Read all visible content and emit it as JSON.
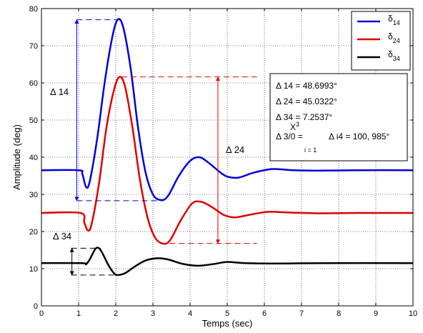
{
  "chart_data": {
    "type": "line",
    "xlabel": "Temps (sec)",
    "ylabel": "Amplitude (deg)",
    "xlim": [
      0,
      10
    ],
    "ylim": [
      0,
      80
    ],
    "xticks": [
      "0",
      "1",
      "2",
      "3",
      "4",
      "5",
      "6",
      "7",
      "8",
      "9",
      "10"
    ],
    "yticks": [
      "0",
      "10",
      "20",
      "30",
      "40",
      "50",
      "60",
      "70",
      "80"
    ],
    "grid": true,
    "legend_position": "top-right",
    "legend": [
      {
        "symbol": "δ",
        "sub": "14",
        "color": "#0000dd"
      },
      {
        "symbol": "δ",
        "sub": "24",
        "color": "#dd0000"
      },
      {
        "symbol": "δ",
        "sub": "34",
        "color": "#000000"
      }
    ],
    "series": [
      {
        "name": "δ14",
        "color": "#0000dd",
        "points": [
          [
            0,
            36.5
          ],
          [
            1.0,
            36.5
          ],
          [
            1.1,
            35.5
          ],
          [
            1.2,
            32.0
          ],
          [
            1.3,
            33.5
          ],
          [
            1.5,
            45
          ],
          [
            1.7,
            60
          ],
          [
            1.9,
            72
          ],
          [
            2.05,
            77
          ],
          [
            2.2,
            75
          ],
          [
            2.4,
            64
          ],
          [
            2.6,
            48
          ],
          [
            2.8,
            36
          ],
          [
            3.0,
            30
          ],
          [
            3.2,
            28.5
          ],
          [
            3.4,
            29.5
          ],
          [
            3.7,
            35
          ],
          [
            4.0,
            39
          ],
          [
            4.25,
            40
          ],
          [
            4.5,
            38.5
          ],
          [
            4.8,
            36
          ],
          [
            5.0,
            34.8
          ],
          [
            5.3,
            34.5
          ],
          [
            5.7,
            35.8
          ],
          [
            6.2,
            36.8
          ],
          [
            6.8,
            36.5
          ],
          [
            7.5,
            36.4
          ],
          [
            8.5,
            36.5
          ],
          [
            10,
            36.5
          ]
        ]
      },
      {
        "name": "δ24",
        "color": "#dd0000",
        "points": [
          [
            0,
            25
          ],
          [
            1.05,
            25
          ],
          [
            1.15,
            22.5
          ],
          [
            1.25,
            20.3
          ],
          [
            1.35,
            22
          ],
          [
            1.55,
            33
          ],
          [
            1.75,
            48
          ],
          [
            1.95,
            58
          ],
          [
            2.1,
            61.6
          ],
          [
            2.25,
            59
          ],
          [
            2.45,
            48
          ],
          [
            2.65,
            34
          ],
          [
            2.85,
            24
          ],
          [
            3.05,
            18.5
          ],
          [
            3.25,
            16.8
          ],
          [
            3.45,
            17.5
          ],
          [
            3.75,
            23
          ],
          [
            4.05,
            27.5
          ],
          [
            4.3,
            28
          ],
          [
            4.6,
            26.5
          ],
          [
            4.9,
            24.5
          ],
          [
            5.2,
            23.8
          ],
          [
            5.6,
            24.5
          ],
          [
            6.1,
            25.3
          ],
          [
            6.7,
            25.1
          ],
          [
            7.5,
            24.9
          ],
          [
            8.5,
            25
          ],
          [
            10,
            25
          ]
        ]
      },
      {
        "name": "δ34",
        "color": "#000000",
        "points": [
          [
            0,
            11.5
          ],
          [
            1.1,
            11.5
          ],
          [
            1.2,
            11.2
          ],
          [
            1.3,
            12.5
          ],
          [
            1.45,
            15.3
          ],
          [
            1.55,
            15.5
          ],
          [
            1.65,
            14
          ],
          [
            1.8,
            11
          ],
          [
            1.95,
            8.8
          ],
          [
            2.05,
            8.3
          ],
          [
            2.25,
            8.8
          ],
          [
            2.5,
            10.5
          ],
          [
            2.8,
            12.2
          ],
          [
            3.1,
            12.8
          ],
          [
            3.4,
            12.5
          ],
          [
            3.8,
            11.3
          ],
          [
            4.2,
            10.8
          ],
          [
            4.6,
            11.2
          ],
          [
            5.0,
            11.8
          ],
          [
            5.5,
            11.5
          ],
          [
            6.5,
            11.4
          ],
          [
            7.5,
            11.5
          ],
          [
            10,
            11.5
          ]
        ]
      }
    ],
    "annotations": {
      "delta14_label": {
        "sym": "Δ",
        "sub": "14",
        "top": 77,
        "bottom": 28.3
      },
      "delta24_label": {
        "sym": "Δ",
        "sub": "24",
        "top": 61.6,
        "bottom": 16.8
      },
      "delta34_label": {
        "sym": "Δ",
        "sub": "34",
        "top": 15.5,
        "bottom": 8.3
      }
    },
    "textbox": {
      "line1": "Δ 14 = 48.6993°",
      "line2": "Δ 24 = 45.0322°",
      "line3": "Δ 34 = 7.2537°",
      "line4_left": "Δ 3/0 =",
      "line4_sum_top": "X",
      "line4_sum_sup": "3",
      "line4_sum_bottom": "i = 1",
      "line4_right": "Δ i4 = 100, 985°"
    }
  }
}
